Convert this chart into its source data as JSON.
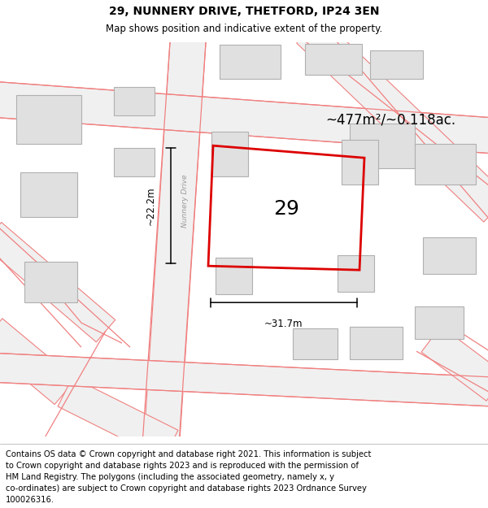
{
  "title": "29, NUNNERY DRIVE, THETFORD, IP24 3EN",
  "subtitle": "Map shows position and indicative extent of the property.",
  "footer": "Contains OS data © Crown copyright and database right 2021. This information is subject to Crown copyright and database rights 2023 and is reproduced with the permission of HM Land Registry. The polygons (including the associated geometry, namely x, y co-ordinates) are subject to Crown copyright and database rights 2023 Ordnance Survey 100026316.",
  "map_bg": "#ffffff",
  "pink": "#f08080",
  "road_fill": "#f0f0f0",
  "building_fill": "#e0e0e0",
  "building_stroke": "#b0b0b0",
  "plot_color": "#dd0000",
  "plot_lw": 2.0,
  "area_label": "~477m²/~0.118ac.",
  "width_label": "~31.7m",
  "height_label": "~22.2m",
  "street_label": "Nunnery Drive",
  "title_fontsize": 10,
  "subtitle_fontsize": 8.5,
  "footer_fontsize": 7.2,
  "number_fontsize": 18,
  "area_fontsize": 12,
  "dim_fontsize": 8.5
}
